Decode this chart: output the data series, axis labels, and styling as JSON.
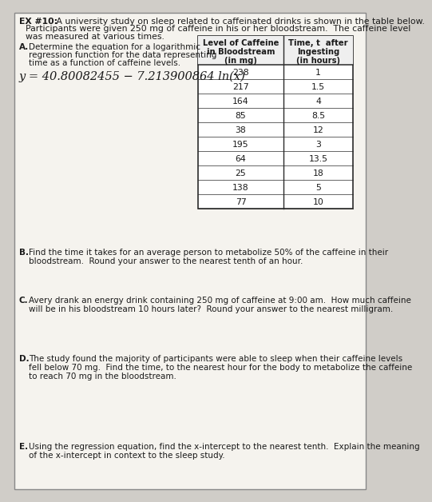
{
  "title_bold": "EX #10:",
  "title_rest": " A university study on sleep related to caffeinated drinks is shown in the table below.",
  "title_line2": "Participants were given 250 mg of caffeine in his or her bloodstream.  The caffeine level",
  "title_line3": "was measured at various times.",
  "partA_label": "A.",
  "partA_line1": "Determine the equation for a logarithmic",
  "partA_line2": "regression function for the data representing",
  "partA_line3": "time as a function of caffeine levels.",
  "equation": "y = 40.80082455 − 7.213900864 ln(x)",
  "col1_header": [
    "Level of Caffeine",
    "in Bloodstream",
    "(in mg)"
  ],
  "col2_header": [
    "Time, t  after",
    "Ingesting",
    "(in hours)"
  ],
  "table_data": [
    [
      "238",
      "1"
    ],
    [
      "217",
      "1.5"
    ],
    [
      "164",
      "4"
    ],
    [
      "85",
      "8.5"
    ],
    [
      "38",
      "12"
    ],
    [
      "195",
      "3"
    ],
    [
      "64",
      "13.5"
    ],
    [
      "25",
      "18"
    ],
    [
      "138",
      "5"
    ],
    [
      "77",
      "10"
    ]
  ],
  "partB_label": "B.",
  "partB_line1": "Find the time it takes for an average person to metabolize 50% of the caffeine in their",
  "partB_line2": "bloodstream.  Round your answer to the nearest tenth of an hour.",
  "partC_label": "C.",
  "partC_line1": "Avery drank an energy drink containing 250 mg of caffeine at 9:00 am.  How much caffeine",
  "partC_line2": "will be in his bloodstream 10 hours later?  Round your answer to the nearest milligram.",
  "partD_label": "D.",
  "partD_line1": "The study found the majority of participants were able to sleep when their caffeine levels",
  "partD_line2": "fell below 70 mg.  Find the time, to the nearest hour for the body to metabolize the caffeine",
  "partD_line3": "to reach 70 mg in the bloodstream.",
  "partE_label": "E.",
  "partE_line1": "Using the regression equation, find the x-intercept to the nearest tenth.  Explain the meaning",
  "partE_line2": "of the x-intercept in context to the sleep study.",
  "bg_color": "#d0cdc8",
  "page_color": "#f5f3ee",
  "text_color": "#1a1a1a",
  "table_border": "#2a2a2a",
  "eq_color": "#1a1a1a",
  "fs_title": 7.8,
  "fs_body": 7.5,
  "fs_table": 7.8,
  "fs_eq": 10.5
}
